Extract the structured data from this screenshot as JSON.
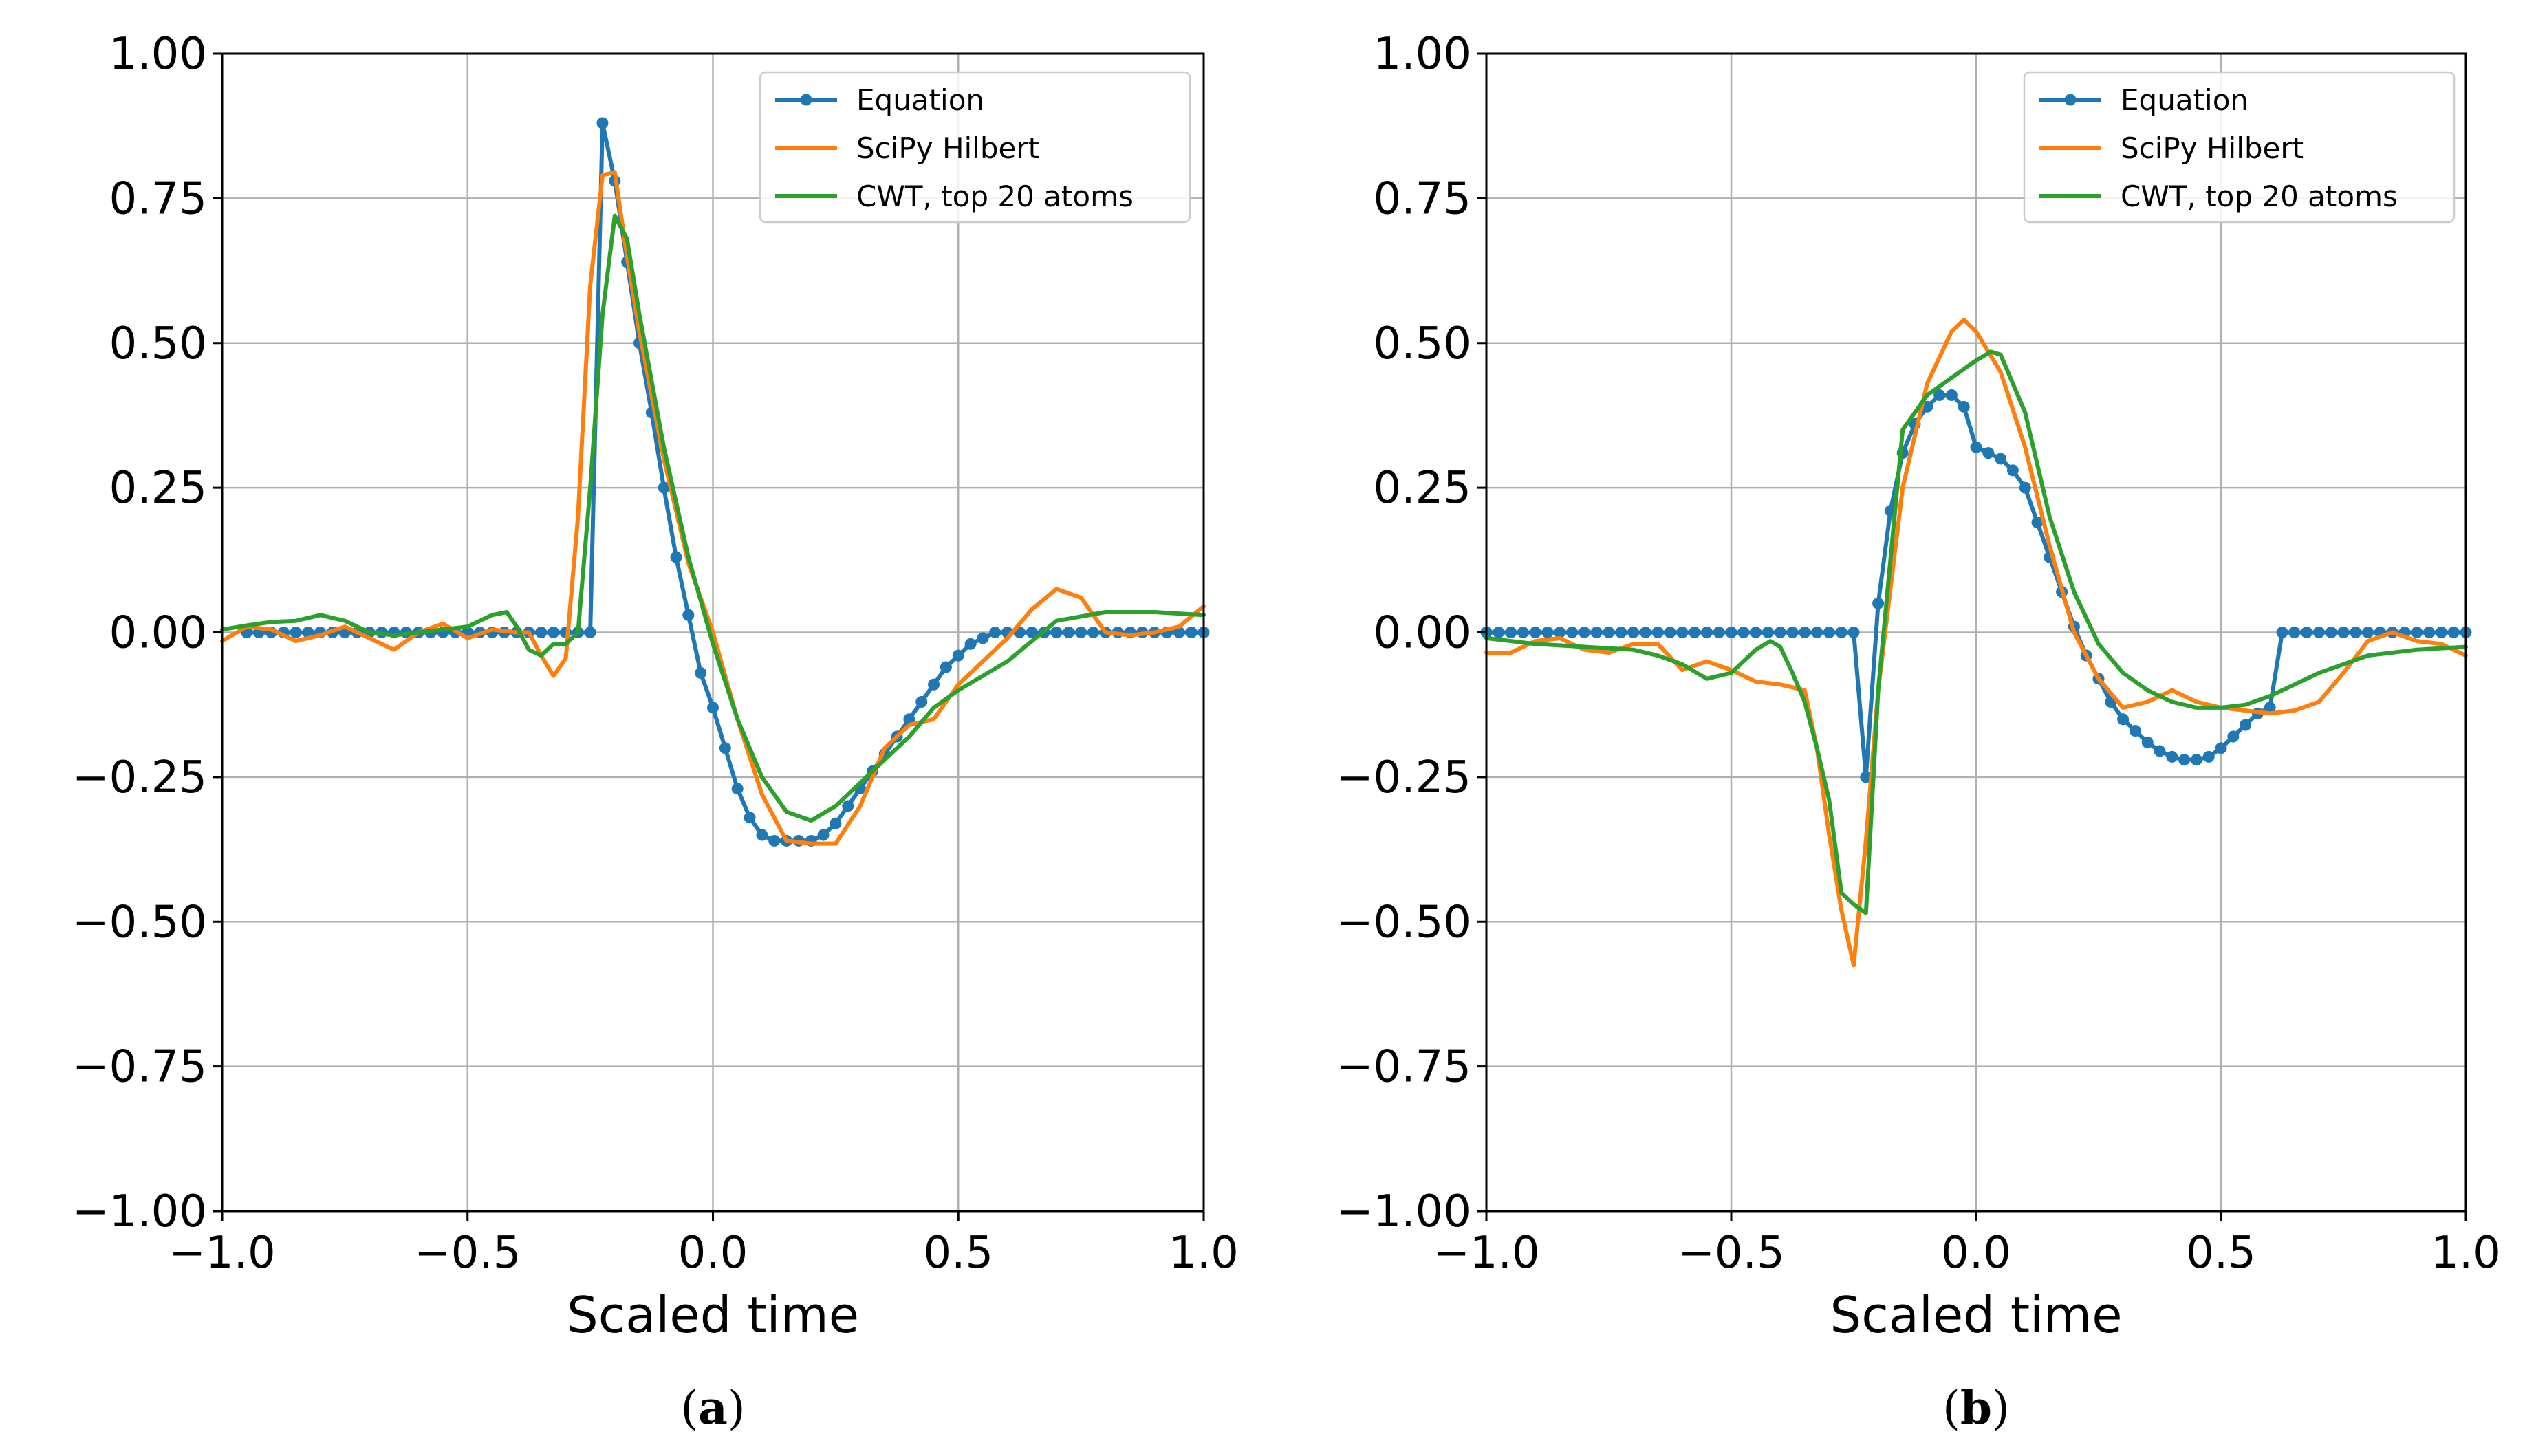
{
  "colors": {
    "equation": "#1f77b4",
    "hilbert": "#ff7f0e",
    "cwt": "#2ca02c"
  },
  "chart_data": [
    {
      "type": "line",
      "panel_label_prefix": "(",
      "panel_label_letter": "a",
      "panel_label_suffix": ")",
      "xlabel": "Scaled time",
      "ylabel": "",
      "xlim": [
        -1.0,
        1.0
      ],
      "ylim": [
        -1.0,
        1.0
      ],
      "xticks": [
        -1.0,
        -0.5,
        0.0,
        0.5,
        1.0
      ],
      "xtick_labels": [
        "−1.0",
        "−0.5",
        "0.0",
        "0.5",
        "1.0"
      ],
      "yticks": [
        -1.0,
        -0.75,
        -0.5,
        -0.25,
        0.0,
        0.25,
        0.5,
        0.75,
        1.0
      ],
      "ytick_labels": [
        "−1.00",
        "−0.75",
        "−0.50",
        "−0.25",
        "0.00",
        "0.25",
        "0.50",
        "0.75",
        "1.00"
      ],
      "grid": true,
      "legend_position": "top-right",
      "series": [
        {
          "name": "Equation",
          "key": "equation",
          "marker": true,
          "x": [
            -0.95,
            -0.925,
            -0.9,
            -0.875,
            -0.85,
            -0.825,
            -0.8,
            -0.775,
            -0.75,
            -0.725,
            -0.7,
            -0.675,
            -0.65,
            -0.625,
            -0.6,
            -0.575,
            -0.55,
            -0.525,
            -0.5,
            -0.475,
            -0.45,
            -0.425,
            -0.4,
            -0.375,
            -0.35,
            -0.325,
            -0.3,
            -0.275,
            -0.25,
            -0.225,
            -0.2,
            -0.175,
            -0.15,
            -0.125,
            -0.1,
            -0.075,
            -0.05,
            -0.025,
            0.0,
            0.025,
            0.05,
            0.075,
            0.1,
            0.125,
            0.15,
            0.175,
            0.2,
            0.225,
            0.25,
            0.275,
            0.3,
            0.325,
            0.35,
            0.375,
            0.4,
            0.425,
            0.45,
            0.475,
            0.5,
            0.525,
            0.55,
            0.575,
            0.6,
            0.625,
            0.65,
            0.675,
            0.7,
            0.725,
            0.75,
            0.775,
            0.8,
            0.825,
            0.85,
            0.875,
            0.9,
            0.925,
            0.95,
            0.975,
            1.0
          ],
          "y": [
            0,
            0,
            0,
            0,
            0,
            0,
            0,
            0,
            0,
            0,
            0,
            0,
            0,
            0,
            0,
            0,
            0,
            0,
            0,
            0,
            0,
            0,
            0,
            0,
            0,
            0,
            0,
            0,
            0,
            0.88,
            0.78,
            0.64,
            0.5,
            0.38,
            0.25,
            0.13,
            0.03,
            -0.07,
            -0.13,
            -0.2,
            -0.27,
            -0.32,
            -0.35,
            -0.36,
            -0.36,
            -0.36,
            -0.36,
            -0.35,
            -0.33,
            -0.3,
            -0.27,
            -0.24,
            -0.21,
            -0.18,
            -0.15,
            -0.12,
            -0.09,
            -0.06,
            -0.04,
            -0.02,
            -0.01,
            0,
            0,
            0,
            0,
            0,
            0,
            0,
            0,
            0,
            0,
            0,
            0,
            0,
            0,
            0,
            0,
            0,
            0
          ]
        },
        {
          "name": "SciPy Hilbert",
          "key": "hilbert",
          "marker": false,
          "x": [
            -1.0,
            -0.95,
            -0.9,
            -0.85,
            -0.8,
            -0.75,
            -0.7,
            -0.65,
            -0.6,
            -0.55,
            -0.5,
            -0.45,
            -0.4,
            -0.375,
            -0.35,
            -0.325,
            -0.3,
            -0.275,
            -0.25,
            -0.225,
            -0.2,
            -0.175,
            -0.15,
            -0.1,
            -0.05,
            0.0,
            0.05,
            0.1,
            0.15,
            0.2,
            0.25,
            0.3,
            0.35,
            0.4,
            0.45,
            0.5,
            0.55,
            0.6,
            0.65,
            0.7,
            0.75,
            0.8,
            0.85,
            0.9,
            0.95,
            1.0
          ],
          "y": [
            -0.015,
            0.01,
            0.005,
            -0.015,
            -0.005,
            0.01,
            -0.01,
            -0.03,
            0.0,
            0.015,
            -0.01,
            0.005,
            0.0,
            0.0,
            -0.04,
            -0.075,
            -0.045,
            0.2,
            0.6,
            0.79,
            0.795,
            0.65,
            0.52,
            0.3,
            0.12,
            0.0,
            -0.15,
            -0.28,
            -0.36,
            -0.365,
            -0.365,
            -0.3,
            -0.2,
            -0.16,
            -0.15,
            -0.09,
            -0.05,
            -0.01,
            0.04,
            0.075,
            0.06,
            0.0,
            -0.005,
            0.0,
            0.01,
            0.045
          ]
        },
        {
          "name": "CWT, top 20 atoms",
          "key": "cwt",
          "marker": false,
          "x": [
            -1.0,
            -0.95,
            -0.9,
            -0.85,
            -0.8,
            -0.75,
            -0.7,
            -0.65,
            -0.6,
            -0.55,
            -0.5,
            -0.45,
            -0.42,
            -0.4,
            -0.375,
            -0.35,
            -0.325,
            -0.3,
            -0.275,
            -0.25,
            -0.225,
            -0.2,
            -0.175,
            -0.15,
            -0.1,
            -0.05,
            0.0,
            0.05,
            0.1,
            0.15,
            0.2,
            0.25,
            0.3,
            0.35,
            0.4,
            0.45,
            0.5,
            0.6,
            0.7,
            0.8,
            0.9,
            1.0
          ],
          "y": [
            0.005,
            0.012,
            0.018,
            0.02,
            0.03,
            0.02,
            0.0,
            -0.005,
            0.0,
            0.005,
            0.01,
            0.03,
            0.035,
            0.01,
            -0.03,
            -0.04,
            -0.02,
            -0.02,
            0.0,
            0.25,
            0.55,
            0.72,
            0.68,
            0.55,
            0.32,
            0.13,
            -0.02,
            -0.15,
            -0.25,
            -0.31,
            -0.325,
            -0.3,
            -0.26,
            -0.22,
            -0.18,
            -0.13,
            -0.1,
            -0.05,
            0.02,
            0.035,
            0.035,
            0.03
          ]
        }
      ]
    },
    {
      "type": "line",
      "panel_label_prefix": "(",
      "panel_label_letter": "b",
      "panel_label_suffix": ")",
      "xlabel": "Scaled time",
      "ylabel": "",
      "xlim": [
        -1.0,
        1.0
      ],
      "ylim": [
        -1.0,
        1.0
      ],
      "xticks": [
        -1.0,
        -0.5,
        0.0,
        0.5,
        1.0
      ],
      "xtick_labels": [
        "−1.0",
        "−0.5",
        "0.0",
        "0.5",
        "1.0"
      ],
      "yticks": [
        -1.0,
        -0.75,
        -0.5,
        -0.25,
        0.0,
        0.25,
        0.5,
        0.75,
        1.0
      ],
      "ytick_labels": [
        "−1.00",
        "−0.75",
        "−0.50",
        "−0.25",
        "0.00",
        "0.25",
        "0.50",
        "0.75",
        "1.00"
      ],
      "grid": true,
      "legend_position": "top-right",
      "series": [
        {
          "name": "Equation",
          "key": "equation",
          "marker": true,
          "x": [
            -1.0,
            -0.975,
            -0.95,
            -0.925,
            -0.9,
            -0.875,
            -0.85,
            -0.825,
            -0.8,
            -0.775,
            -0.75,
            -0.725,
            -0.7,
            -0.675,
            -0.65,
            -0.625,
            -0.6,
            -0.575,
            -0.55,
            -0.525,
            -0.5,
            -0.475,
            -0.45,
            -0.425,
            -0.4,
            -0.375,
            -0.35,
            -0.325,
            -0.3,
            -0.275,
            -0.25,
            -0.225,
            -0.2,
            -0.175,
            -0.15,
            -0.125,
            -0.1,
            -0.075,
            -0.05,
            -0.025,
            0.0,
            0.025,
            0.05,
            0.075,
            0.1,
            0.125,
            0.15,
            0.175,
            0.2,
            0.225,
            0.25,
            0.275,
            0.3,
            0.325,
            0.35,
            0.375,
            0.4,
            0.425,
            0.45,
            0.475,
            0.5,
            0.525,
            0.55,
            0.575,
            0.6,
            0.625,
            0.65,
            0.675,
            0.7,
            0.725,
            0.75,
            0.775,
            0.8,
            0.825,
            0.85,
            0.875,
            0.9,
            0.925,
            0.95,
            0.975,
            1.0
          ],
          "y": [
            0,
            0,
            0,
            0,
            0,
            0,
            0,
            0,
            0,
            0,
            0,
            0,
            0,
            0,
            0,
            0,
            0,
            0,
            0,
            0,
            0,
            0,
            0,
            0,
            0,
            0,
            0,
            0,
            0,
            0,
            0,
            -0.25,
            0.05,
            0.21,
            0.31,
            0.36,
            0.39,
            0.41,
            0.41,
            0.39,
            0.32,
            0.31,
            0.3,
            0.28,
            0.25,
            0.19,
            0.13,
            0.07,
            0.01,
            -0.04,
            -0.08,
            -0.12,
            -0.15,
            -0.17,
            -0.19,
            -0.205,
            -0.215,
            -0.22,
            -0.22,
            -0.215,
            -0.2,
            -0.18,
            -0.16,
            -0.14,
            -0.13,
            0,
            0,
            0,
            0,
            0,
            0,
            0,
            0,
            0,
            0,
            0,
            0,
            0,
            0,
            0,
            0
          ]
        },
        {
          "name": "SciPy Hilbert",
          "key": "hilbert",
          "marker": false,
          "x": [
            -1.0,
            -0.95,
            -0.9,
            -0.85,
            -0.8,
            -0.75,
            -0.7,
            -0.65,
            -0.6,
            -0.55,
            -0.5,
            -0.45,
            -0.4,
            -0.35,
            -0.325,
            -0.3,
            -0.275,
            -0.25,
            -0.225,
            -0.2,
            -0.15,
            -0.1,
            -0.05,
            -0.025,
            0.0,
            0.05,
            0.1,
            0.15,
            0.2,
            0.25,
            0.3,
            0.35,
            0.4,
            0.45,
            0.5,
            0.55,
            0.6,
            0.65,
            0.7,
            0.75,
            0.8,
            0.85,
            0.9,
            0.95,
            1.0
          ],
          "y": [
            -0.035,
            -0.035,
            -0.015,
            -0.01,
            -0.03,
            -0.035,
            -0.02,
            -0.02,
            -0.065,
            -0.05,
            -0.065,
            -0.085,
            -0.09,
            -0.1,
            -0.2,
            -0.35,
            -0.48,
            -0.575,
            -0.36,
            -0.1,
            0.25,
            0.43,
            0.52,
            0.54,
            0.52,
            0.45,
            0.32,
            0.15,
            0.0,
            -0.08,
            -0.13,
            -0.12,
            -0.1,
            -0.12,
            -0.13,
            -0.135,
            -0.14,
            -0.135,
            -0.12,
            -0.07,
            -0.015,
            0.0,
            -0.015,
            -0.02,
            -0.04
          ]
        },
        {
          "name": "CWT, top 20 atoms",
          "key": "cwt",
          "marker": false,
          "x": [
            -1.0,
            -0.9,
            -0.8,
            -0.7,
            -0.65,
            -0.6,
            -0.55,
            -0.5,
            -0.45,
            -0.42,
            -0.4,
            -0.375,
            -0.35,
            -0.325,
            -0.3,
            -0.275,
            -0.25,
            -0.225,
            -0.2,
            -0.15,
            -0.1,
            -0.05,
            0.0,
            0.03,
            0.05,
            0.1,
            0.15,
            0.2,
            0.25,
            0.3,
            0.35,
            0.4,
            0.45,
            0.5,
            0.55,
            0.6,
            0.7,
            0.8,
            0.9,
            1.0
          ],
          "y": [
            -0.01,
            -0.02,
            -0.025,
            -0.03,
            -0.04,
            -0.055,
            -0.08,
            -0.07,
            -0.03,
            -0.015,
            -0.025,
            -0.07,
            -0.12,
            -0.2,
            -0.29,
            -0.45,
            -0.47,
            -0.485,
            -0.1,
            0.35,
            0.41,
            0.44,
            0.47,
            0.485,
            0.48,
            0.38,
            0.2,
            0.07,
            -0.02,
            -0.07,
            -0.1,
            -0.12,
            -0.13,
            -0.13,
            -0.125,
            -0.11,
            -0.07,
            -0.04,
            -0.03,
            -0.025
          ]
        }
      ]
    }
  ]
}
